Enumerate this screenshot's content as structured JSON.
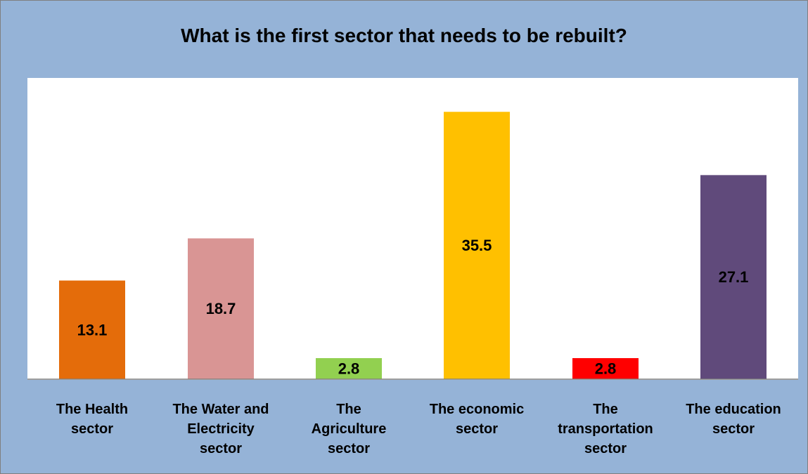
{
  "chart_data": {
    "type": "bar",
    "title": "What is the first sector that needs to be rebuilt?",
    "categories": [
      "The Health\nsector",
      "The Water and\nElectricity\nsector",
      "The\nAgriculture\nsector",
      "The economic\nsector",
      "The\ntransportation\nsector",
      "The education\nsector"
    ],
    "values": [
      13.1,
      18.7,
      2.8,
      35.5,
      2.8,
      27.1
    ],
    "value_labels": [
      "13.1",
      "18.7",
      "2.8",
      "35.5",
      "2.8",
      "27.1"
    ],
    "colors": [
      "#e46c0a",
      "#d99594",
      "#92d050",
      "#ffc000",
      "#ff0000",
      "#604a7b"
    ],
    "ylim": [
      0,
      40
    ],
    "grid": false,
    "legend": "none",
    "data_labels": "inside-center"
  }
}
